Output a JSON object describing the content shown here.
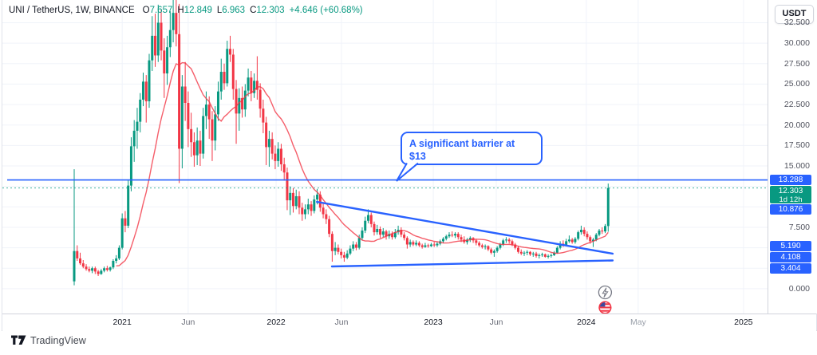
{
  "header": {
    "symbol_text": "UNI / TetherUS, 1W, BINANCE",
    "o_label": "O",
    "o": "7.657",
    "h_label": "H",
    "h": "12.849",
    "l_label": "L",
    "l": "6.963",
    "c_label": "C",
    "c": "12.303",
    "change": "+4.646 (+60.68%)"
  },
  "price_axis": {
    "currency_button": "USDT",
    "ticks": [
      {
        "label": "32.500",
        "price": 32.5
      },
      {
        "label": "30.000",
        "price": 30.0
      },
      {
        "label": "27.500",
        "price": 27.5
      },
      {
        "label": "25.000",
        "price": 25.0
      },
      {
        "label": "22.500",
        "price": 22.5
      },
      {
        "label": "20.000",
        "price": 20.0
      },
      {
        "label": "17.500",
        "price": 17.5
      },
      {
        "label": "15.000",
        "price": 15.0
      },
      {
        "label": "7.500",
        "price": 7.5
      },
      {
        "label": "0.000",
        "price": 0.0
      }
    ],
    "badges": [
      {
        "label": "13.288",
        "price": 13.288,
        "type": "blue"
      },
      {
        "label": "12.303",
        "price": 12.303,
        "type": "green",
        "countdown": "1d 12h"
      },
      {
        "label": "10.876",
        "price": 10.876,
        "type": "blue"
      },
      {
        "label": "5.190",
        "price": 5.19,
        "type": "blue"
      },
      {
        "label": "4.108",
        "price": 4.108,
        "type": "blue"
      },
      {
        "label": "3.404",
        "price": 3.404,
        "type": "blue"
      }
    ]
  },
  "time_axis": {
    "ticks": [
      {
        "label": "2021",
        "week": 16.0,
        "style": "year"
      },
      {
        "label": "Jun",
        "week": 38.0,
        "style": "month"
      },
      {
        "label": "2022",
        "week": 67.3,
        "style": "year"
      },
      {
        "label": "Jun",
        "week": 89.1,
        "style": "month"
      },
      {
        "label": "2023",
        "week": 119.7,
        "style": "year"
      },
      {
        "label": "Jun",
        "week": 140.7,
        "style": "month"
      },
      {
        "label": "2024",
        "week": 170.7,
        "style": "year"
      },
      {
        "label": "May",
        "week": 188.0,
        "style": "faded"
      },
      {
        "label": "2025",
        "week": 223.1,
        "style": "year"
      }
    ]
  },
  "attribution": {
    "label": "TradingView"
  },
  "chart_data": {
    "type": "candlestick",
    "symbol": "UNI/USDT",
    "timeframe": "1W",
    "exchange": "BINANCE",
    "colors": {
      "up": "#089981",
      "down": "#f23645",
      "ma": "#f23645",
      "drawing": "#2962FF",
      "price_line": "#089981"
    },
    "ylim": [
      0,
      36
    ],
    "grid": true,
    "candles_ohlc": [
      [
        0.9,
        14.6,
        0.42,
        4.6
      ],
      [
        4.6,
        5.3,
        3.4,
        3.7
      ],
      [
        3.7,
        4.4,
        2.9,
        3.1
      ],
      [
        3.1,
        3.5,
        2.5,
        2.7
      ],
      [
        2.7,
        3.0,
        2.2,
        2.4
      ],
      [
        2.4,
        2.7,
        2.0,
        2.2
      ],
      [
        2.2,
        2.7,
        1.9,
        2.5
      ],
      [
        2.5,
        2.7,
        1.8,
        2.1
      ],
      [
        2.1,
        2.3,
        1.55,
        1.8
      ],
      [
        1.8,
        2.4,
        1.7,
        2.2
      ],
      [
        2.2,
        2.7,
        2.0,
        2.5
      ],
      [
        2.5,
        2.8,
        2.1,
        2.3
      ],
      [
        2.3,
        2.7,
        2.1,
        2.6
      ],
      [
        2.6,
        3.6,
        2.4,
        3.4
      ],
      [
        3.4,
        4.1,
        3.1,
        3.7
      ],
      [
        3.7,
        5.3,
        3.5,
        5.0
      ],
      [
        5.0,
        9.2,
        4.8,
        8.6
      ],
      [
        8.6,
        9.5,
        6.9,
        7.7
      ],
      [
        7.7,
        13.3,
        7.4,
        12.6
      ],
      [
        12.6,
        18.5,
        11.9,
        17.4
      ],
      [
        17.4,
        20.6,
        15.5,
        19.3
      ],
      [
        19.3,
        22.1,
        17.1,
        20.4
      ],
      [
        20.4,
        23.9,
        19.1,
        23.1
      ],
      [
        23.1,
        26.4,
        22.3,
        25.3
      ],
      [
        25.3,
        26.1,
        20.3,
        22.9
      ],
      [
        22.9,
        28.7,
        22.1,
        27.9
      ],
      [
        27.9,
        33.3,
        26.6,
        30.9
      ],
      [
        30.9,
        33.6,
        27.1,
        28.5
      ],
      [
        28.5,
        34.7,
        27.7,
        32.5
      ],
      [
        32.5,
        34.1,
        27.9,
        29.1
      ],
      [
        29.1,
        30.6,
        23.3,
        26.3
      ],
      [
        26.3,
        30.9,
        24.9,
        29.5
      ],
      [
        29.5,
        33.9,
        28.3,
        31.6
      ],
      [
        31.6,
        35.6,
        30.1,
        33.7
      ],
      [
        33.7,
        36.4,
        29.6,
        31.1
      ],
      [
        31.1,
        34.8,
        12.9,
        17.1
      ],
      [
        17.1,
        26.1,
        14.7,
        24.7
      ],
      [
        24.7,
        27.7,
        20.5,
        22.7
      ],
      [
        22.7,
        24.1,
        17.3,
        19.5
      ],
      [
        19.5,
        21.5,
        16.1,
        17.9
      ],
      [
        17.9,
        19.1,
        14.9,
        16.3
      ],
      [
        16.3,
        19.7,
        15.1,
        18.1
      ],
      [
        18.1,
        19.3,
        15.0,
        16.5
      ],
      [
        16.5,
        22.1,
        15.9,
        21.1
      ],
      [
        21.1,
        24.1,
        19.5,
        22.5
      ],
      [
        22.5,
        23.5,
        18.3,
        20.7
      ],
      [
        20.7,
        21.7,
        15.6,
        18.1
      ],
      [
        18.1,
        22.3,
        16.9,
        21.3
      ],
      [
        21.3,
        25.3,
        20.5,
        24.1
      ],
      [
        24.1,
        28.1,
        23.1,
        26.5
      ],
      [
        26.5,
        27.5,
        24.3,
        25.1
      ],
      [
        25.1,
        30.3,
        24.7,
        29.3
      ],
      [
        29.3,
        30.9,
        27.7,
        28.6
      ],
      [
        28.6,
        29.3,
        23.1,
        24.4
      ],
      [
        24.4,
        25.5,
        17.7,
        21.4
      ],
      [
        21.4,
        24.5,
        19.3,
        23.3
      ],
      [
        23.3,
        24.7,
        20.9,
        21.9
      ],
      [
        21.9,
        25.0,
        21.0,
        24.2
      ],
      [
        24.2,
        26.9,
        23.5,
        25.8
      ],
      [
        25.8,
        26.6,
        22.9,
        23.9
      ],
      [
        23.9,
        26.3,
        23.3,
        25.4
      ],
      [
        25.4,
        28.4,
        23.1,
        24.3
      ],
      [
        24.3,
        25.1,
        20.9,
        22.0
      ],
      [
        22.0,
        23.1,
        19.0,
        20.3
      ],
      [
        20.3,
        21.0,
        15.1,
        17.3
      ],
      [
        17.3,
        19.3,
        14.9,
        18.3
      ],
      [
        18.3,
        19.1,
        15.8,
        16.5
      ],
      [
        16.5,
        17.5,
        14.6,
        15.6
      ],
      [
        15.6,
        17.9,
        14.9,
        17.1
      ],
      [
        17.1,
        17.7,
        14.4,
        15.2
      ],
      [
        15.2,
        16.0,
        13.2,
        14.2
      ],
      [
        14.2,
        14.8,
        9.6,
        10.8
      ],
      [
        10.8,
        12.5,
        9.0,
        11.7
      ],
      [
        11.7,
        12.3,
        9.3,
        10.1
      ],
      [
        10.1,
        12.1,
        9.7,
        11.3
      ],
      [
        11.3,
        11.9,
        9.1,
        9.9
      ],
      [
        9.9,
        10.5,
        8.3,
        9.1
      ],
      [
        9.1,
        10.3,
        8.5,
        9.7
      ],
      [
        9.7,
        11.0,
        9.1,
        10.3
      ],
      [
        10.3,
        10.7,
        8.9,
        9.5
      ],
      [
        9.5,
        11.4,
        9.2,
        10.9
      ],
      [
        10.9,
        12.2,
        10.3,
        11.5
      ],
      [
        11.5,
        11.9,
        9.4,
        9.9
      ],
      [
        9.9,
        10.4,
        8.6,
        9.1
      ],
      [
        9.1,
        9.7,
        7.9,
        8.5
      ],
      [
        8.5,
        8.9,
        6.3,
        6.7
      ],
      [
        6.7,
        7.0,
        3.3,
        4.6
      ],
      [
        4.6,
        5.7,
        4.1,
        5.0
      ],
      [
        5.0,
        5.4,
        4.2,
        4.5
      ],
      [
        4.5,
        4.9,
        3.7,
        4.1
      ],
      [
        4.1,
        4.5,
        3.3,
        3.8
      ],
      [
        3.8,
        4.7,
        3.6,
        4.3
      ],
      [
        4.3,
        5.3,
        4.1,
        4.9
      ],
      [
        4.9,
        5.8,
        4.6,
        5.4
      ],
      [
        5.4,
        5.7,
        4.7,
        5.0
      ],
      [
        5.0,
        6.6,
        4.8,
        6.2
      ],
      [
        6.2,
        7.5,
        5.9,
        7.1
      ],
      [
        7.1,
        8.8,
        6.8,
        8.3
      ],
      [
        8.3,
        9.7,
        8.0,
        9.0
      ],
      [
        9.0,
        9.3,
        7.5,
        7.9
      ],
      [
        7.9,
        8.2,
        6.5,
        6.9
      ],
      [
        6.9,
        7.8,
        6.6,
        7.3
      ],
      [
        7.3,
        7.6,
        6.2,
        6.6
      ],
      [
        6.6,
        7.4,
        6.3,
        7.0
      ],
      [
        7.0,
        7.2,
        6.0,
        6.4
      ],
      [
        6.4,
        7.1,
        6.1,
        6.7
      ],
      [
        6.7,
        7.0,
        6.0,
        6.3
      ],
      [
        6.3,
        7.3,
        6.1,
        6.9
      ],
      [
        6.9,
        7.7,
        6.6,
        7.2
      ],
      [
        7.2,
        7.5,
        6.3,
        6.6
      ],
      [
        6.6,
        6.9,
        5.9,
        6.2
      ],
      [
        6.2,
        6.4,
        4.9,
        5.4
      ],
      [
        5.4,
        6.0,
        5.1,
        5.7
      ],
      [
        5.7,
        5.9,
        5.2,
        5.4
      ],
      [
        5.4,
        5.9,
        5.2,
        5.6
      ],
      [
        5.6,
        5.8,
        5.1,
        5.3
      ],
      [
        5.3,
        5.5,
        4.9,
        5.1
      ],
      [
        5.1,
        5.6,
        5.0,
        5.3
      ],
      [
        5.3,
        5.5,
        5.0,
        5.2
      ],
      [
        5.2,
        5.6,
        5.1,
        5.4
      ],
      [
        5.4,
        5.7,
        5.1,
        5.3
      ],
      [
        5.3,
        5.7,
        5.1,
        5.5
      ],
      [
        5.5,
        6.0,
        5.3,
        5.8
      ],
      [
        5.8,
        6.3,
        5.6,
        6.1
      ],
      [
        6.1,
        6.6,
        5.9,
        6.4
      ],
      [
        6.4,
        6.9,
        6.2,
        6.6
      ],
      [
        6.6,
        7.0,
        6.3,
        6.5
      ],
      [
        6.5,
        6.9,
        6.2,
        6.7
      ],
      [
        6.7,
        6.9,
        6.0,
        6.3
      ],
      [
        6.3,
        6.6,
        5.7,
        6.0
      ],
      [
        6.0,
        6.4,
        5.5,
        5.7
      ],
      [
        5.7,
        6.2,
        5.4,
        6.0
      ],
      [
        6.0,
        6.4,
        5.7,
        6.2
      ],
      [
        6.2,
        6.3,
        5.6,
        5.9
      ],
      [
        5.9,
        6.1,
        5.3,
        5.6
      ],
      [
        5.6,
        5.8,
        5.1,
        5.3
      ],
      [
        5.3,
        5.5,
        4.9,
        5.1
      ],
      [
        5.1,
        5.4,
        4.8,
        5.2
      ],
      [
        5.2,
        5.3,
        4.6,
        4.8
      ],
      [
        4.8,
        5.0,
        4.2,
        4.4
      ],
      [
        4.4,
        4.8,
        3.9,
        4.6
      ],
      [
        4.6,
        5.2,
        4.4,
        5.0
      ],
      [
        5.0,
        5.6,
        4.8,
        5.4
      ],
      [
        5.4,
        6.1,
        5.2,
        5.9
      ],
      [
        5.9,
        6.3,
        5.6,
        6.0
      ],
      [
        6.0,
        6.2,
        5.5,
        5.8
      ],
      [
        5.8,
        6.0,
        5.2,
        5.4
      ],
      [
        5.4,
        5.6,
        4.8,
        5.0
      ],
      [
        5.0,
        5.2,
        4.3,
        4.5
      ],
      [
        4.5,
        4.8,
        4.1,
        4.3
      ],
      [
        4.3,
        4.6,
        4.0,
        4.4
      ],
      [
        4.4,
        4.7,
        4.1,
        4.5
      ],
      [
        4.5,
        4.6,
        4.0,
        4.2
      ],
      [
        4.2,
        4.5,
        3.9,
        4.3
      ],
      [
        4.3,
        4.5,
        3.8,
        4.0
      ],
      [
        4.0,
        4.3,
        3.7,
        4.1
      ],
      [
        4.1,
        4.4,
        3.9,
        4.2
      ],
      [
        4.2,
        4.3,
        3.8,
        3.9
      ],
      [
        3.9,
        4.2,
        3.7,
        4.0
      ],
      [
        4.0,
        4.3,
        3.8,
        4.1
      ],
      [
        4.1,
        4.6,
        4.0,
        4.4
      ],
      [
        4.4,
        5.2,
        4.3,
        5.0
      ],
      [
        5.0,
        5.8,
        4.8,
        5.5
      ],
      [
        5.5,
        5.9,
        5.1,
        5.3
      ],
      [
        5.3,
        6.1,
        5.2,
        5.8
      ],
      [
        5.8,
        6.5,
        5.6,
        6.0
      ],
      [
        6.0,
        6.2,
        5.5,
        5.7
      ],
      [
        5.7,
        6.3,
        5.5,
        6.1
      ],
      [
        6.1,
        7.1,
        5.9,
        6.9
      ],
      [
        6.9,
        7.7,
        6.6,
        7.2
      ],
      [
        7.2,
        7.5,
        6.4,
        6.7
      ],
      [
        6.7,
        7.0,
        6.0,
        6.3
      ],
      [
        6.3,
        6.5,
        5.5,
        5.8
      ],
      [
        5.8,
        6.2,
        5.1,
        6.0
      ],
      [
        6.0,
        6.8,
        5.8,
        6.6
      ],
      [
        6.6,
        7.3,
        6.4,
        7.1
      ],
      [
        7.1,
        7.5,
        6.7,
        7.0
      ],
      [
        7.0,
        7.9,
        6.8,
        7.657
      ],
      [
        7.657,
        12.849,
        6.963,
        12.303
      ]
    ],
    "ma_line": {
      "kind": "sma",
      "period": 15,
      "color": "#f23645"
    },
    "drawings": {
      "horizontal_line": {
        "price": 13.288,
        "color": "#2962FF"
      },
      "current_price_line": {
        "price": 12.303,
        "style": "dotted",
        "color": "#089981"
      },
      "trend_lines": [
        {
          "name": "upper-descending",
          "w1": 80.9,
          "p1": 10.61,
          "w2": 179.5,
          "p2": 4.28
        },
        {
          "name": "lower-flat",
          "w1": 85.9,
          "p1": 2.72,
          "w2": 179.5,
          "p2": 3.45
        }
      ],
      "callout": {
        "lines": [
          "A significant barrier at",
          "$13"
        ],
        "color": "#2962FF"
      }
    },
    "events": [
      {
        "icon": "lightning",
        "week": 177.5
      },
      {
        "icon": "us-flag",
        "week": 177.5
      }
    ]
  }
}
